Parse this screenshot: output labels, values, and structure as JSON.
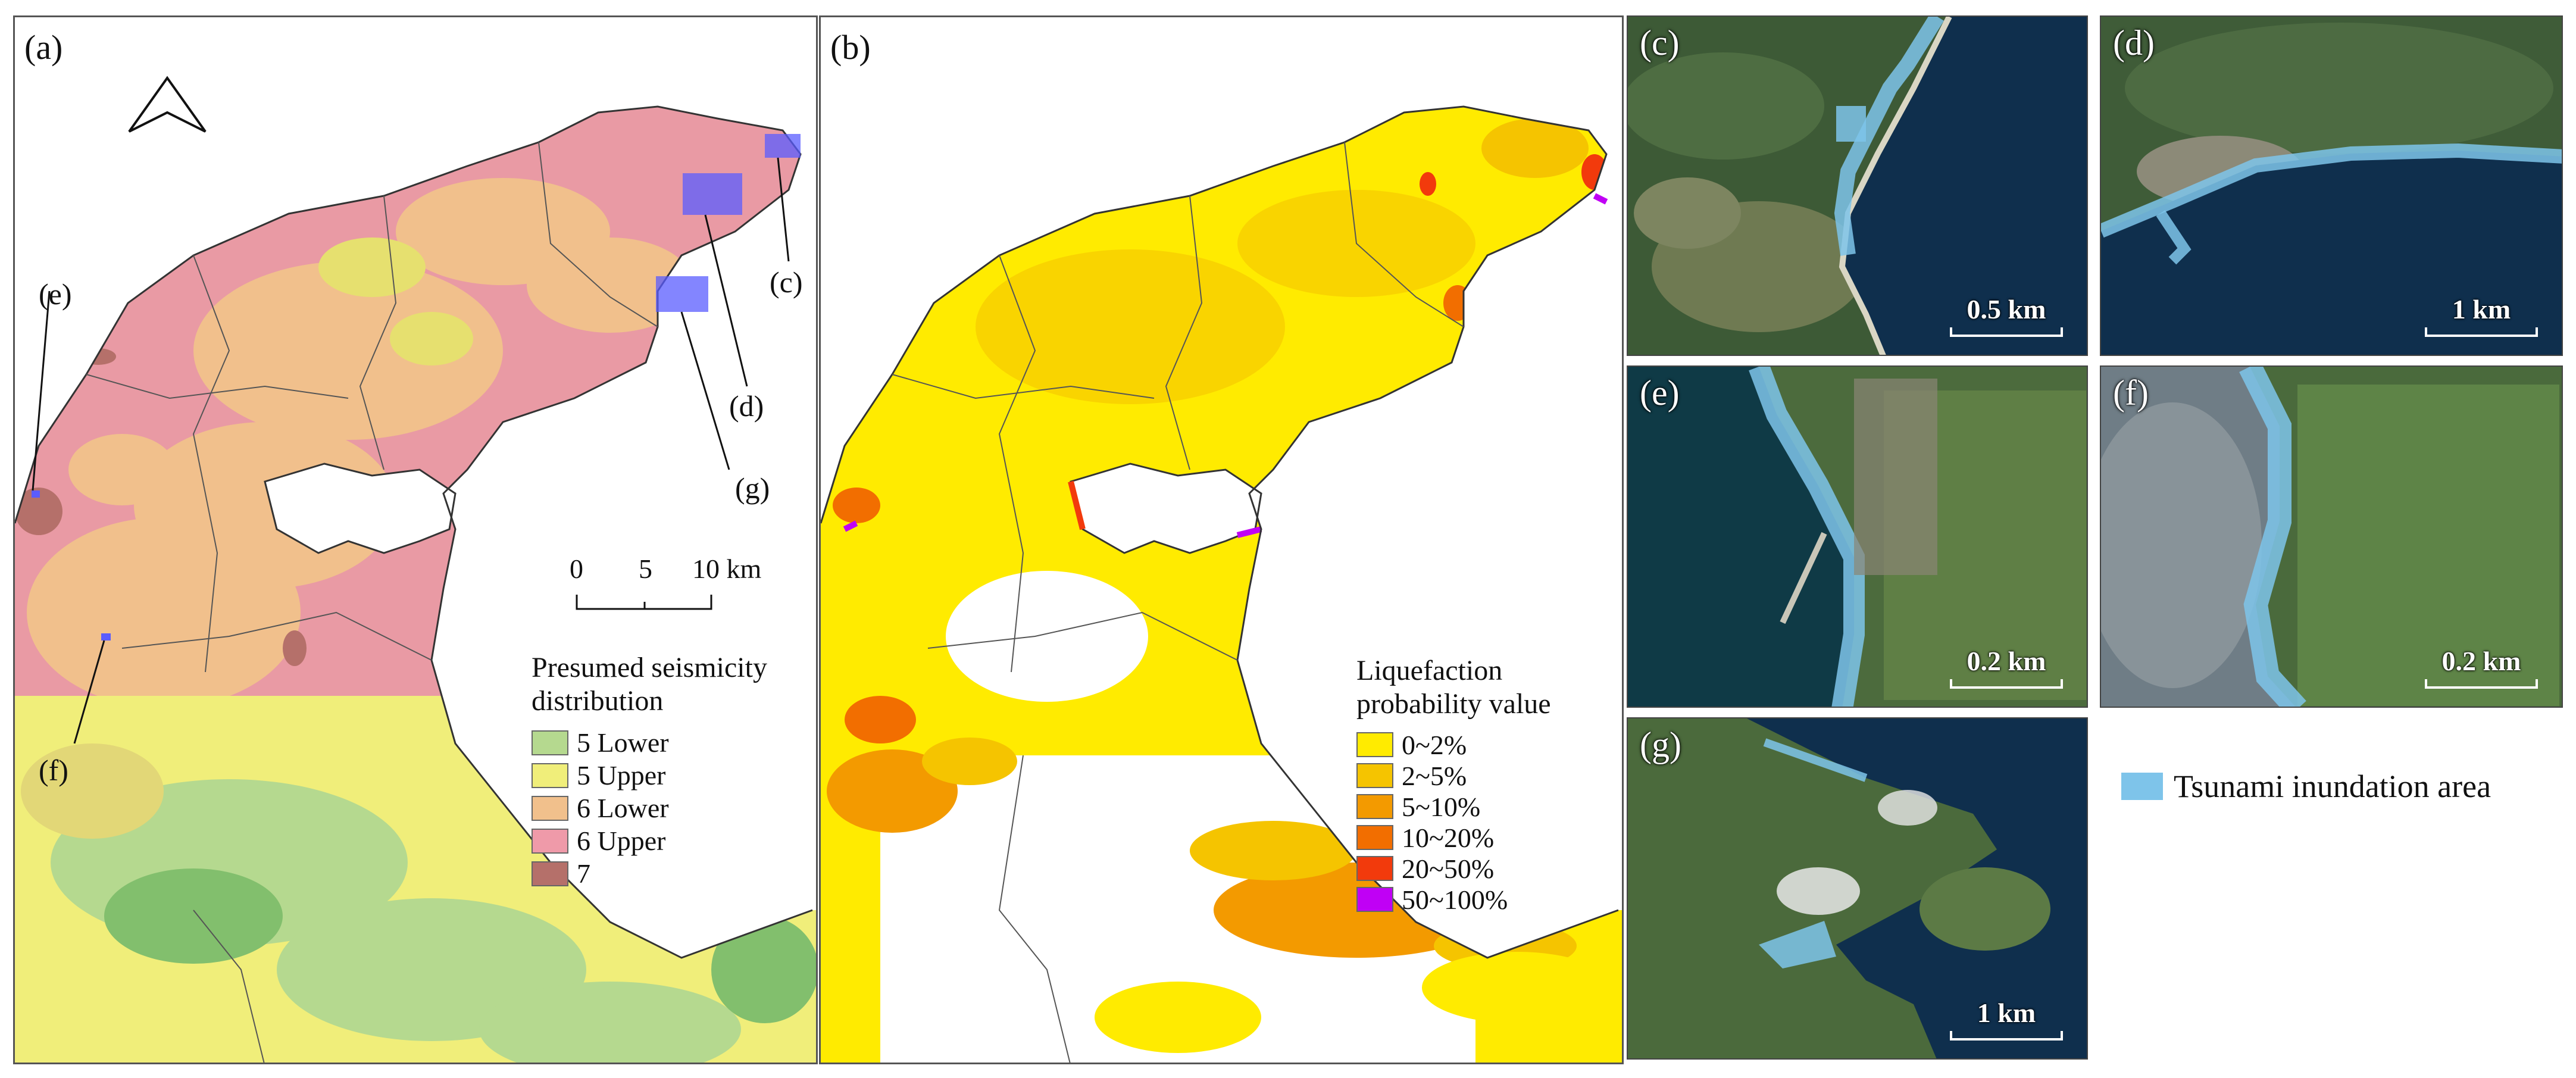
{
  "panels": {
    "a": {
      "label": "(a)",
      "north_arrow": "north-arrow-icon",
      "callouts": [
        "(c)",
        "(d)",
        "(e)",
        "(f)",
        "(g)"
      ],
      "scale": {
        "ticks": [
          "0",
          "5",
          "10 km"
        ]
      },
      "legend": {
        "title_line1": "Presumed seismicity",
        "title_line2": "distribution",
        "items": [
          {
            "label": "5 Lower",
            "color": "#b5d98f"
          },
          {
            "label": "5 Upper",
            "color": "#f0ee7a"
          },
          {
            "label": "6 Lower",
            "color": "#f1c08c"
          },
          {
            "label": "6 Upper",
            "color": "#ef9aa9"
          },
          {
            "label": "7",
            "color": "#b5706a"
          }
        ]
      }
    },
    "b": {
      "label": "(b)",
      "legend": {
        "title_line1": "Liquefaction",
        "title_line2": "probability value",
        "items": [
          {
            "label": "0~2%",
            "color": "#ffeb00"
          },
          {
            "label": "2~5%",
            "color": "#f5c400"
          },
          {
            "label": "5~10%",
            "color": "#f39a00"
          },
          {
            "label": "10~20%",
            "color": "#f26e00"
          },
          {
            "label": "20~50%",
            "color": "#f23a0c"
          },
          {
            "label": "50~100%",
            "color": "#c000f5"
          }
        ]
      }
    },
    "photos": [
      {
        "label": "(c)",
        "scale": "0.5 km"
      },
      {
        "label": "(d)",
        "scale": "1 km"
      },
      {
        "label": "(e)",
        "scale": "0.2 km"
      },
      {
        "label": "(f)",
        "scale": "0.2 km"
      },
      {
        "label": "(g)",
        "scale": "1 km"
      }
    ],
    "tsunami_legend": {
      "label": "Tsunami inundation area",
      "color": "#7ec4ea"
    }
  }
}
